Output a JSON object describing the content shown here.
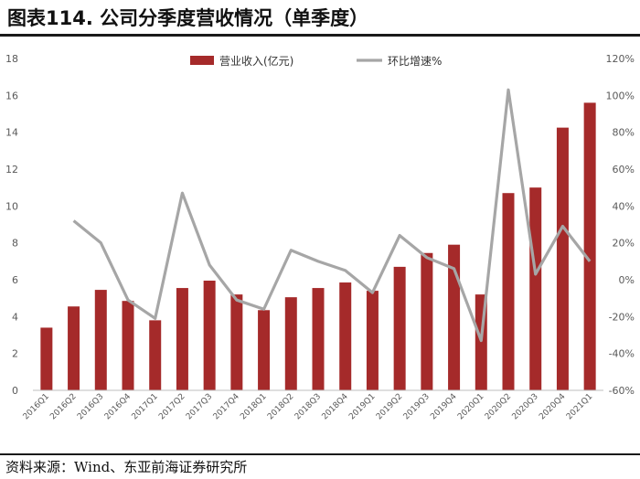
{
  "title": "图表114. 公司分季度营收情况（单季度）",
  "source": "资料来源：Wind、东亚前海证券研究所",
  "chart_data": {
    "type": "bar",
    "categories": [
      "2016Q1",
      "2016Q2",
      "2016Q3",
      "2016Q4",
      "2017Q1",
      "2017Q2",
      "2017Q3",
      "2017Q4",
      "2018Q1",
      "2018Q2",
      "2018Q3",
      "2018Q4",
      "2019Q1",
      "2019Q2",
      "2019Q3",
      "2019Q4",
      "2020Q1",
      "2020Q2",
      "2020Q3",
      "2020Q4",
      "2021Q1"
    ],
    "series": [
      {
        "name": "营业收入(亿元)",
        "type": "bar",
        "axis": "left",
        "color": "#A52A2A",
        "values": [
          3.4,
          4.55,
          5.45,
          4.85,
          3.8,
          5.55,
          5.95,
          5.2,
          4.35,
          5.05,
          5.55,
          5.85,
          5.4,
          6.7,
          7.45,
          7.9,
          5.2,
          10.7,
          11.0,
          14.25,
          15.6
        ]
      },
      {
        "name": "环比增速%",
        "type": "line",
        "axis": "right",
        "color": "#A6A6A6",
        "values": [
          null,
          32,
          20,
          -11,
          -21,
          47,
          8,
          -11,
          -16,
          16,
          10,
          5,
          -7,
          24,
          12,
          6,
          -33,
          103,
          3,
          29,
          10
        ]
      }
    ],
    "y_left": {
      "min": 0,
      "max": 18,
      "ticks": [
        "0",
        "2",
        "4",
        "6",
        "8",
        "10",
        "12",
        "14",
        "16",
        "18"
      ]
    },
    "y_right": {
      "min": -60,
      "max": 120,
      "ticks": [
        "-60%",
        "-40%",
        "-20%",
        "0%",
        "20%",
        "40%",
        "60%",
        "80%",
        "100%",
        "120%"
      ]
    },
    "legend_position": "top-center",
    "grid": false
  },
  "tick_labels": {
    "x": [
      "2016Q1",
      "2016Q2",
      "2016Q3",
      "2016Q4",
      "2017Q1",
      "2017Q2",
      "2017Q3",
      "2017Q4",
      "2018Q1",
      "2018Q2",
      "2018Q3",
      "2018Q4",
      "2019Q1",
      "2019Q2",
      "2019Q3",
      "2019Q4",
      "2020Q1",
      "2020Q2",
      "2020Q3",
      "2020Q4",
      "2021Q1"
    ]
  }
}
